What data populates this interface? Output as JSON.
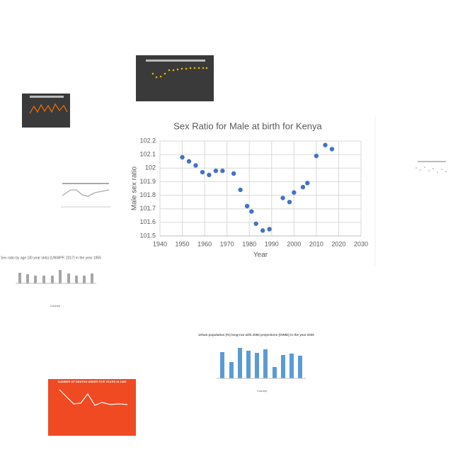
{
  "chart_data": {
    "type": "scatter",
    "title": "Sex Ratio for Male at birth for Kenya",
    "x_label": "Year",
    "y_label": "Male sex ratio",
    "x": [
      1950,
      1953,
      1956,
      1959,
      1962,
      1965,
      1968,
      1973,
      1976,
      1979,
      1981,
      1983,
      1986,
      1989,
      1995,
      1998,
      2000,
      2004,
      2006,
      2010,
      2014,
      2017
    ],
    "values": [
      102.08,
      102.05,
      102.02,
      101.97,
      101.95,
      101.98,
      101.98,
      101.96,
      101.84,
      101.72,
      101.68,
      101.59,
      101.54,
      101.55,
      101.78,
      101.75,
      101.82,
      101.86,
      101.89,
      102.09,
      102.17,
      102.14
    ],
    "color": "#4472c4",
    "xlim": [
      1940,
      2030
    ],
    "xticks": [
      1940,
      1950,
      1960,
      1970,
      1980,
      1990,
      2000,
      2010,
      2020,
      2030
    ],
    "ylim": [
      101.5,
      102.2
    ],
    "yticks": [
      101.5,
      101.6,
      101.7,
      101.8,
      101.9,
      102,
      102.1,
      102.2
    ],
    "grid": true
  },
  "thumbnails": {
    "sex_ratio_1955": {
      "title": "Sex ratio by age (30 year olds) (UNWPP, 2017) in the year 1955",
      "x_label": "Country"
    },
    "urban_population": {
      "title": "Urban population (%) long-run with 2050 projections (OWID) in the year 2020",
      "x_label": "Country"
    },
    "deaths_under_five": {
      "title": "NUMBER OF DEATHS UNDER FIVE YEARS IN 1965"
    }
  }
}
